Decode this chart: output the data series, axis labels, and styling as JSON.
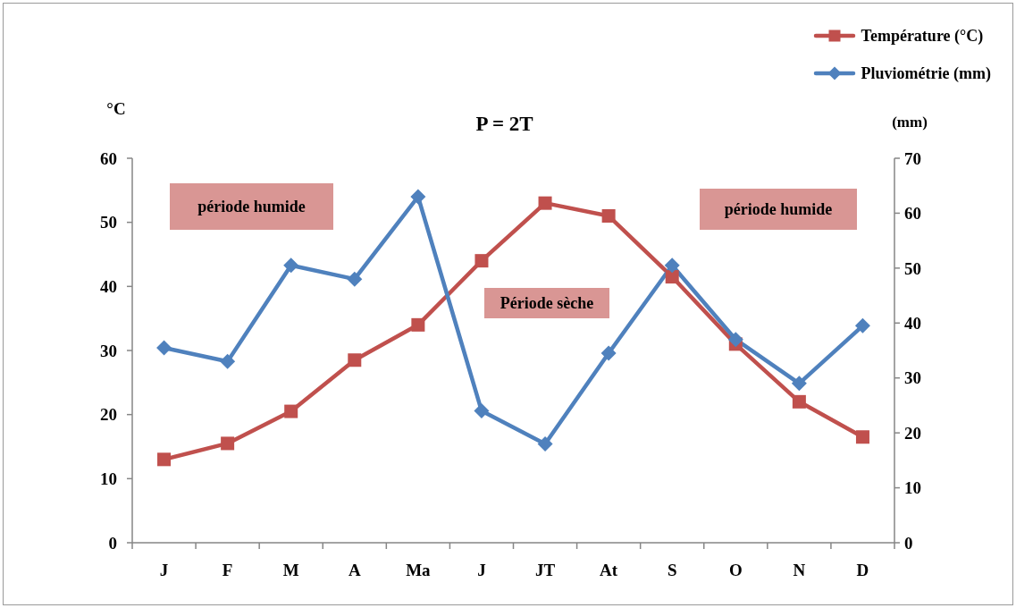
{
  "chart_data": {
    "type": "line",
    "title": "P = 2T",
    "ylabel": "°C",
    "y2label": "(mm)",
    "categories": [
      "J",
      "F",
      "M",
      "A",
      "Ma",
      "J",
      "JT",
      "At",
      "S",
      "O",
      "N",
      "D"
    ],
    "series": [
      {
        "name": "Température (°C)",
        "color": "#c0504d",
        "marker": "square",
        "values": [
          13,
          15.5,
          20.5,
          28.5,
          34,
          44,
          53,
          51,
          41.5,
          31,
          22,
          16.5
        ]
      },
      {
        "name": "Pluviométrie (mm)",
        "color": "#4f81bd",
        "marker": "diamond",
        "axis": "y2",
        "values": [
          35.5,
          33,
          50.5,
          48,
          63,
          24,
          18,
          34.5,
          50.5,
          37,
          29,
          39.5
        ]
      }
    ],
    "ylim": [
      0,
      60
    ],
    "yticks": [
      0,
      10,
      20,
      30,
      40,
      50,
      60
    ],
    "y2lim": [
      0,
      70
    ],
    "y2ticks": [
      0,
      10,
      20,
      30,
      40,
      50,
      60,
      70
    ],
    "legend": "top right",
    "annotations": [
      "période humide",
      "Période sèche",
      "période humide"
    ]
  }
}
